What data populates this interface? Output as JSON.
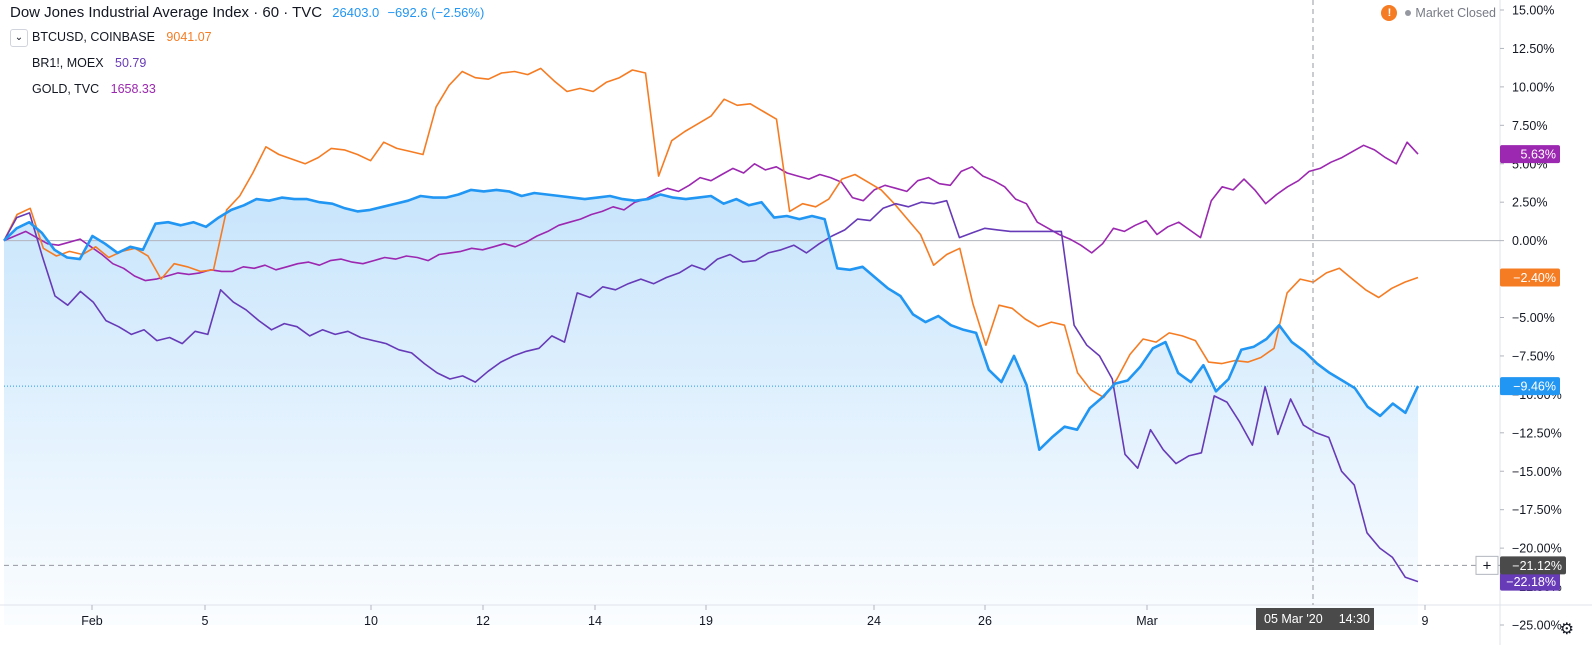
{
  "header": {
    "title": "Dow Jones Industrial Average Index · 60 · TVC",
    "main_value": "26403.0",
    "main_change": "−692.6 (−2.56%)",
    "main_color": "#2196f3"
  },
  "legend": [
    {
      "symbol": "BTCUSD, COINBASE",
      "value": "9041.07",
      "color": "#f57c23"
    },
    {
      "symbol": "BR1!, MOEX",
      "value": "50.79",
      "color": "#673ab7"
    },
    {
      "symbol": "GOLD, TVC",
      "value": "1658.33",
      "color": "#9c27b0"
    }
  ],
  "status": {
    "warning_icon": "exclamation-icon",
    "text": "Market Closed"
  },
  "crosshair": {
    "date_label": "05 Mar '20",
    "time_label": "14:30",
    "value_label": "−21.12%"
  },
  "colors": {
    "dji": "#2196f3",
    "btc": "#f57c23",
    "brent": "#673ab7",
    "gold": "#9c27b0",
    "grid_zero": "#b2b5be"
  },
  "chart_data": {
    "type": "line",
    "x_ticks": [
      "Feb",
      "5",
      "10",
      "12",
      "14",
      "19",
      "24",
      "26",
      "Mar",
      "9"
    ],
    "y_ticks": [
      "15.00%",
      "12.50%",
      "10.00%",
      "7.50%",
      "5.00%",
      "2.50%",
      "0.00%",
      "−2.50%",
      "−5.00%",
      "−7.50%",
      "−10.00%",
      "−12.50%",
      "−15.00%",
      "−17.50%",
      "−20.00%",
      "−22.50%",
      "−25.00%"
    ],
    "ylim": [
      -25,
      15
    ],
    "last_value_labels": [
      {
        "series": "GOLD, TVC",
        "text": "5.63%",
        "value": 5.63
      },
      {
        "series": "BTCUSD, COINBASE",
        "text": "−2.40%",
        "value": -2.4
      },
      {
        "series": "Dow Jones Industrial Average Index",
        "text": "−9.46%",
        "value": -9.46
      },
      {
        "series": "BR1!, MOEX",
        "text": "−22.18%",
        "value": -22.18
      }
    ],
    "series": [
      {
        "name": "Dow Jones Industrial Average Index",
        "key": "dji",
        "values": [
          0,
          0.8,
          1.2,
          0.5,
          -0.6,
          -1.1,
          -1.2,
          0.3,
          -0.2,
          -0.8,
          -0.4,
          -0.6,
          1.1,
          1.2,
          1.0,
          1.2,
          0.9,
          1.5,
          2.0,
          2.3,
          2.7,
          2.6,
          2.8,
          2.7,
          2.7,
          2.5,
          2.4,
          2.1,
          1.9,
          2.0,
          2.2,
          2.4,
          2.6,
          2.9,
          2.8,
          2.8,
          3.0,
          3.3,
          3.2,
          3.3,
          3.2,
          2.9,
          3.1,
          3.0,
          2.9,
          2.8,
          2.7,
          2.8,
          2.9,
          2.7,
          2.6,
          2.7,
          3.0,
          2.8,
          2.7,
          2.8,
          2.9,
          2.4,
          2.7,
          2.3,
          2.5,
          1.5,
          1.6,
          1.4,
          1.6,
          1.4,
          -1.8,
          -1.9,
          -1.7,
          -2.4,
          -3.1,
          -3.6,
          -4.8,
          -5.3,
          -4.9,
          -5.5,
          -5.8,
          -6.0,
          -8.4,
          -9.2,
          -7.5,
          -9.4,
          -13.6,
          -12.8,
          -12.1,
          -12.3,
          -10.9,
          -10.2,
          -9.3,
          -9.1,
          -8.2,
          -7.0,
          -6.6,
          -8.6,
          -9.2,
          -8.1,
          -9.8,
          -9.0,
          -7.1,
          -6.9,
          -6.4,
          -5.5,
          -6.6,
          -7.2,
          -8.0,
          -8.6,
          -9.1,
          -9.6,
          -10.8,
          -11.4,
          -10.6,
          -11.2,
          -9.46
        ]
      },
      {
        "name": "BTCUSD, COINBASE",
        "key": "btc",
        "values": [
          0,
          1.7,
          2.1,
          -0.5,
          -1.0,
          -0.7,
          -0.9,
          -0.4,
          -1.1,
          -0.7,
          -0.5,
          -1.0,
          -2.5,
          -1.5,
          -1.7,
          -2.0,
          -1.9,
          2.0,
          2.9,
          4.4,
          6.1,
          5.6,
          5.3,
          5.0,
          5.4,
          6.0,
          5.9,
          5.6,
          5.2,
          6.4,
          6.0,
          5.8,
          5.6,
          8.7,
          10.1,
          11.0,
          10.6,
          10.5,
          10.9,
          11.0,
          10.8,
          11.2,
          10.4,
          9.7,
          9.9,
          9.7,
          10.3,
          10.6,
          11.1,
          10.9,
          4.2,
          6.5,
          7.1,
          7.6,
          8.1,
          9.2,
          8.8,
          8.9,
          8.4,
          7.9,
          1.9,
          2.4,
          2.2,
          2.7,
          4.0,
          4.3,
          3.8,
          3.3,
          2.4,
          1.4,
          0.4,
          -1.6,
          -0.9,
          -0.5,
          -4.1,
          -6.8,
          -4.2,
          -4.4,
          -5.1,
          -5.6,
          -5.3,
          -5.5,
          -8.6,
          -9.7,
          -10.2,
          -9.0,
          -7.4,
          -6.4,
          -6.6,
          -6.0,
          -6.2,
          -6.5,
          -7.9,
          -8.0,
          -7.8,
          -7.9,
          -7.6,
          -7.0,
          -3.4,
          -2.5,
          -2.7,
          -2.1,
          -1.8,
          -2.5,
          -3.2,
          -3.7,
          -3.1,
          -2.7,
          -2.4
        ]
      },
      {
        "name": "BR1!, MOEX",
        "key": "brent",
        "values": [
          0,
          1.5,
          1.8,
          -1.0,
          -3.6,
          -4.2,
          -3.3,
          -4.0,
          -5.2,
          -5.6,
          -6.1,
          -5.8,
          -6.5,
          -6.3,
          -6.7,
          -5.9,
          -6.1,
          -3.2,
          -4.0,
          -4.5,
          -5.2,
          -5.8,
          -5.4,
          -5.6,
          -6.2,
          -5.8,
          -6.1,
          -5.9,
          -6.3,
          -6.5,
          -6.7,
          -7.1,
          -7.3,
          -8.0,
          -8.6,
          -9.0,
          -8.8,
          -9.2,
          -8.5,
          -7.9,
          -7.5,
          -7.2,
          -7.0,
          -6.2,
          -6.6,
          -3.4,
          -3.7,
          -3.0,
          -3.2,
          -2.8,
          -2.5,
          -2.8,
          -2.4,
          -2.1,
          -1.6,
          -1.9,
          -1.2,
          -0.9,
          -1.4,
          -1.3,
          -0.8,
          -0.6,
          -0.3,
          -0.8,
          -0.2,
          0.3,
          0.7,
          1.4,
          1.3,
          2.1,
          2.4,
          2.2,
          2.5,
          2.4,
          2.6,
          0.2,
          0.5,
          0.8,
          0.7,
          0.6,
          0.6,
          0.6,
          0.6,
          0.6,
          -5.5,
          -6.8,
          -7.5,
          -9.0,
          -13.9,
          -14.8,
          -12.3,
          -13.6,
          -14.5,
          -14.0,
          -13.8,
          -10.1,
          -10.5,
          -11.8,
          -13.3,
          -9.5,
          -12.6,
          -10.3,
          -12.0,
          -12.5,
          -12.8,
          -15.0,
          -15.9,
          -19.0,
          -20.0,
          -20.6,
          -21.9,
          -22.18
        ]
      },
      {
        "name": "GOLD, TVC",
        "key": "gold",
        "values": [
          0,
          0.3,
          0.6,
          0.2,
          -0.2,
          -0.3,
          -0.1,
          0.1,
          -0.4,
          -0.9,
          -1.5,
          -1.8,
          -2.3,
          -2.6,
          -2.5,
          -2.3,
          -2.1,
          -2.2,
          -2.1,
          -1.9,
          -2.0,
          -2.0,
          -1.7,
          -1.8,
          -1.6,
          -1.9,
          -1.7,
          -1.5,
          -1.4,
          -1.6,
          -1.3,
          -1.2,
          -1.4,
          -1.5,
          -1.3,
          -1.1,
          -1.2,
          -1.0,
          -1.1,
          -1.3,
          -0.9,
          -0.8,
          -0.7,
          -0.5,
          -0.6,
          -0.4,
          -0.2,
          -0.4,
          -0.1,
          0.3,
          0.6,
          1.0,
          1.2,
          1.4,
          1.7,
          1.9,
          2.2,
          2.0,
          2.5,
          2.7,
          3.1,
          3.4,
          3.2,
          3.6,
          4.1,
          3.9,
          4.3,
          4.7,
          4.4,
          5.0,
          4.6,
          4.8,
          4.4,
          4.2,
          4.0,
          4.3,
          4.1,
          3.8,
          2.8,
          2.6,
          3.3,
          3.6,
          3.4,
          3.2,
          3.9,
          4.1,
          3.7,
          3.6,
          4.5,
          4.8,
          4.2,
          3.9,
          3.5,
          2.7,
          2.4,
          1.2,
          0.8,
          0.4,
          0.1,
          -0.3,
          -0.8,
          -0.2,
          0.8,
          0.6,
          1.0,
          1.3,
          0.4,
          0.9,
          1.2,
          0.7,
          0.2,
          2.6,
          3.5,
          3.3,
          4.0,
          3.3,
          2.4,
          3.0,
          3.5,
          3.9,
          4.5,
          4.7,
          5.1,
          5.4,
          5.8,
          6.2,
          5.9,
          5.4,
          5.0,
          6.4,
          5.63
        ]
      }
    ]
  }
}
